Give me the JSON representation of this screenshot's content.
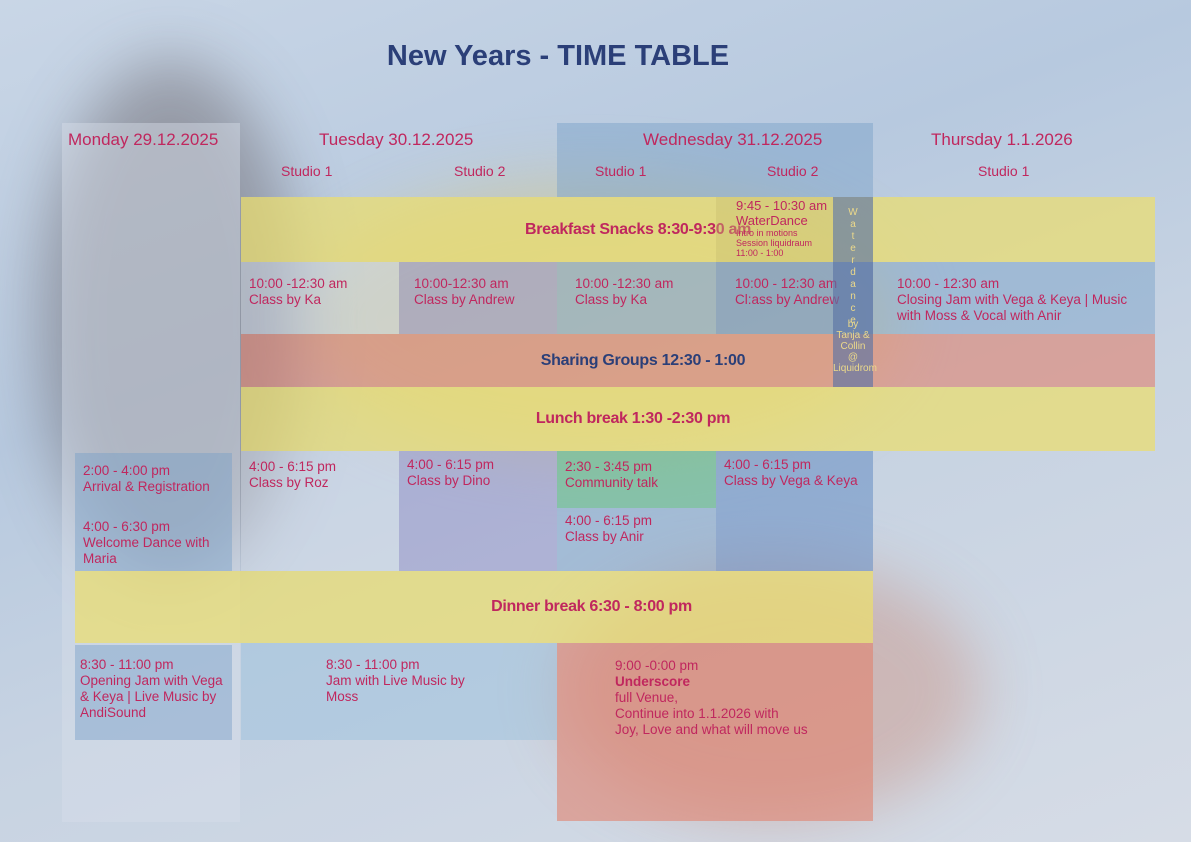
{
  "title": "New Years - TIME TABLE",
  "days": [
    {
      "label": "Monday 29.12.2025",
      "studios": []
    },
    {
      "label": "Tuesday 30.12.2025",
      "studios": [
        "Studio 1",
        "Studio 2"
      ]
    },
    {
      "label": "Wednesday 31.12.2025",
      "studios": [
        "Studio 1",
        "Studio 2"
      ]
    },
    {
      "label": "Thursday 1.1.2026",
      "studios": [
        "Studio 1"
      ]
    }
  ],
  "bands": {
    "breakfast": "Breakfast Snacks 8:30-9:30 am",
    "sharing": "Sharing Groups 12:30 - 1:00",
    "lunch": "Lunch break 1:30 -2:30 pm",
    "dinner": "Dinner break 6:30 - 8:00 pm"
  },
  "waterdance": {
    "time": "9:45 - 10:30 am",
    "name": "WaterDance",
    "line1": "Intro in motions",
    "line2": "Session liquidraum",
    "line3": "11:00 - 1:00",
    "vertical_word": "Waterdance",
    "vertical_by": "by",
    "vertical_names": "Tanja &",
    "vertical_names2": "Collin",
    "vertical_at": "@",
    "vertical_place": "Liquidrom"
  },
  "morning": {
    "tue_s1": {
      "time": "10:00 -12:30 am",
      "title": "Class by Ka"
    },
    "tue_s2": {
      "time": "10:00-12:30 am",
      "title": "Class by Andrew"
    },
    "wed_s1": {
      "time": "10:00 -12:30 am",
      "title": "Class by Ka"
    },
    "wed_s2": {
      "time": "10:00 - 12:30 am",
      "title": "Cl:ass by Andrew"
    },
    "thu_s1": {
      "time": "10:00 - 12:30 am",
      "title": "Closing Jam with Vega & Keya | Music with Moss & Vocal with Anir"
    }
  },
  "afternoon": {
    "mon_1": {
      "time": "2:00 - 4:00 pm",
      "title": "Arrival & Registration"
    },
    "mon_2": {
      "time": "4:00 - 6:30 pm",
      "title": "Welcome Dance with Maria"
    },
    "tue_s1": {
      "time": "4:00 - 6:15 pm",
      "title": "Class by Roz"
    },
    "tue_s2": {
      "time": "4:00 - 6:15 pm",
      "title": "Class by Dino"
    },
    "wed_s1a": {
      "time": "2:30 - 3:45 pm",
      "title": "Community talk"
    },
    "wed_s1b": {
      "time": "4:00 - 6:15 pm",
      "title": "Class by Anir"
    },
    "wed_s2": {
      "time": "4:00 - 6:15 pm",
      "title": "Class by Vega & Keya"
    }
  },
  "evening": {
    "mon": {
      "time": "8:30 - 11:00 pm",
      "title": "Opening Jam with Vega & Keya | Live Music by AndiSound"
    },
    "tue": {
      "time": "8:30 - 11:00 pm",
      "title": "Jam with Live Music by Moss"
    },
    "wed": {
      "time": "9:00 -0:00 pm",
      "title": "Underscore",
      "line1": "full Venue,",
      "line2": "Continue into 1.1.2026 with",
      "line3": "Joy, Love and what will move us"
    }
  },
  "colors": {
    "text": "#c0275e",
    "title": "#2b3f78",
    "yellow": "#ecde6e",
    "blue": "#78a0c8",
    "salmon": "#e1826e",
    "green": "#64b98c"
  }
}
